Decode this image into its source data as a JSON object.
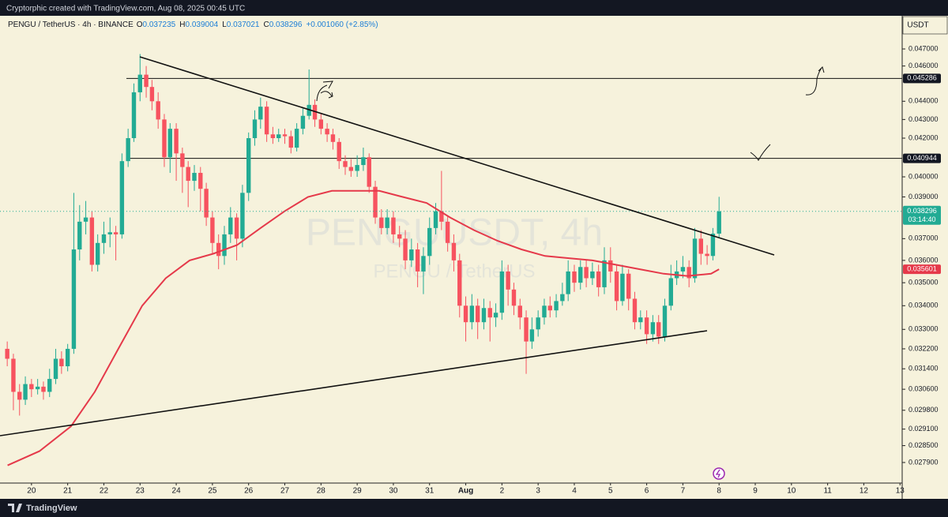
{
  "header": {
    "attribution": "Cryptorphic created with TradingView.com, Aug 08, 2025 00:45 UTC",
    "brand": "TradingView"
  },
  "chart_data": {
    "type": "candlestick",
    "legend": {
      "symbol": "PENGU / TetherUS · 4h · BINANCE",
      "o": "O",
      "h": "H",
      "l": "L",
      "c": "C",
      "change": "+0.001060 (+2.85%)"
    },
    "watermark": {
      "title": "PENGUUSDT, 4h",
      "subtitle": "PENGU / TetherUS"
    },
    "currency": "USDT",
    "up_color": "#22ab94",
    "down_color": "#f7525f",
    "x": [
      19.33,
      19.5,
      19.67,
      19.83,
      20,
      20.17,
      20.33,
      20.5,
      20.67,
      20.83,
      21,
      21.17,
      21.33,
      21.5,
      21.67,
      21.83,
      22,
      22.17,
      22.33,
      22.5,
      22.67,
      22.83,
      23,
      23.17,
      23.33,
      23.5,
      23.67,
      23.83,
      24,
      24.17,
      24.33,
      24.5,
      24.67,
      24.83,
      25,
      25.17,
      25.33,
      25.5,
      25.67,
      25.83,
      26,
      26.17,
      26.33,
      26.5,
      26.67,
      26.83,
      27,
      27.17,
      27.33,
      27.5,
      27.67,
      27.83,
      28,
      28.17,
      28.33,
      28.5,
      28.67,
      28.83,
      29,
      29.17,
      29.33,
      29.5,
      29.67,
      29.83,
      30,
      30.17,
      30.33,
      30.5,
      30.67,
      30.83,
      31,
      31.17,
      31.33,
      31.5,
      31.67,
      31.83,
      32,
      32.17,
      32.33,
      32.5,
      32.67,
      32.83,
      33,
      33.17,
      33.33,
      33.5,
      33.67,
      33.83,
      34,
      34.17,
      34.33,
      34.5,
      34.67,
      34.83,
      35,
      35.17,
      35.33,
      35.5,
      35.67,
      35.83,
      36,
      36.17,
      36.33,
      36.5,
      36.67,
      36.83,
      37,
      37.17,
      37.33,
      37.5,
      37.67,
      37.83,
      38,
      38.17,
      38.33,
      38.5,
      38.67,
      38.83,
      39
    ],
    "open": [
      0.0322,
      0.0318,
      0.0305,
      0.0302,
      0.0308,
      0.0306,
      0.0307,
      0.0305,
      0.031,
      0.0318,
      0.0315,
      0.0322,
      0.0365,
      0.0378,
      0.038,
      0.0358,
      0.0368,
      0.0372,
      0.0373,
      0.0372,
      0.0408,
      0.042,
      0.0445,
      0.0455,
      0.0448,
      0.044,
      0.043,
      0.041,
      0.0425,
      0.0412,
      0.0405,
      0.0398,
      0.0402,
      0.0394,
      0.038,
      0.0368,
      0.0362,
      0.0372,
      0.038,
      0.037,
      0.0392,
      0.042,
      0.043,
      0.0437,
      0.0422,
      0.042,
      0.0422,
      0.0421,
      0.0415,
      0.0425,
      0.0432,
      0.0438,
      0.043,
      0.0425,
      0.0422,
      0.0418,
      0.0408,
      0.0405,
      0.0403,
      0.0406,
      0.041,
      0.0395,
      0.038,
      0.0375,
      0.038,
      0.0372,
      0.037,
      0.036,
      0.0365,
      0.0355,
      0.0362,
      0.0375,
      0.0383,
      0.0378,
      0.0368,
      0.036,
      0.034,
      0.0333,
      0.034,
      0.0333,
      0.0339,
      0.0335,
      0.0337,
      0.0355,
      0.0347,
      0.034,
      0.0335,
      0.0325,
      0.033,
      0.0335,
      0.034,
      0.0338,
      0.0342,
      0.0345,
      0.0355,
      0.035,
      0.0357,
      0.0352,
      0.0355,
      0.0348,
      0.036,
      0.0355,
      0.0342,
      0.0354,
      0.0343,
      0.0333,
      0.0335,
      0.0328,
      0.0333,
      0.0327,
      0.034,
      0.0352,
      0.0355,
      0.0357,
      0.0352,
      0.037,
      0.0363,
      0.0362,
      0.037235
    ],
    "high": [
      0.0325,
      0.032,
      0.0308,
      0.0311,
      0.031,
      0.031,
      0.0309,
      0.0314,
      0.0322,
      0.0321,
      0.0324,
      0.0392,
      0.0386,
      0.0388,
      0.0383,
      0.0372,
      0.0378,
      0.038,
      0.0376,
      0.0412,
      0.0425,
      0.045,
      0.0467,
      0.046,
      0.0452,
      0.0445,
      0.0433,
      0.0428,
      0.0428,
      0.0415,
      0.0408,
      0.0406,
      0.0405,
      0.0397,
      0.0383,
      0.0372,
      0.0376,
      0.0385,
      0.0382,
      0.0396,
      0.0423,
      0.0435,
      0.0442,
      0.044,
      0.0426,
      0.0425,
      0.0425,
      0.0424,
      0.0428,
      0.0436,
      0.0458,
      0.0441,
      0.0433,
      0.0428,
      0.0425,
      0.042,
      0.0411,
      0.0409,
      0.0411,
      0.0415,
      0.0412,
      0.0398,
      0.0384,
      0.0384,
      0.0383,
      0.0376,
      0.0374,
      0.037,
      0.0368,
      0.0366,
      0.038,
      0.0387,
      0.0403,
      0.0381,
      0.0372,
      0.0363,
      0.0344,
      0.0345,
      0.0343,
      0.0343,
      0.0342,
      0.0341,
      0.036,
      0.0358,
      0.035,
      0.0343,
      0.0338,
      0.0335,
      0.0338,
      0.0343,
      0.0344,
      0.0345,
      0.035,
      0.036,
      0.0358,
      0.036,
      0.036,
      0.0359,
      0.0358,
      0.0366,
      0.0366,
      0.0358,
      0.0358,
      0.0356,
      0.0346,
      0.0338,
      0.0338,
      0.0336,
      0.0336,
      0.0343,
      0.0358,
      0.036,
      0.0362,
      0.036,
      0.0375,
      0.0374,
      0.0367,
      0.0375,
      0.039004
    ],
    "low": [
      0.0315,
      0.0298,
      0.0296,
      0.03,
      0.0303,
      0.0304,
      0.0302,
      0.0303,
      0.0308,
      0.0312,
      0.0313,
      0.032,
      0.036,
      0.0372,
      0.0355,
      0.0355,
      0.0363,
      0.0366,
      0.036,
      0.037,
      0.0405,
      0.0418,
      0.044,
      0.0442,
      0.0435,
      0.0425,
      0.0405,
      0.0402,
      0.0398,
      0.0392,
      0.0385,
      0.0393,
      0.0383,
      0.0376,
      0.0363,
      0.0356,
      0.0358,
      0.0368,
      0.036,
      0.0366,
      0.0388,
      0.0416,
      0.0425,
      0.0418,
      0.0417,
      0.0418,
      0.0417,
      0.0412,
      0.0413,
      0.0422,
      0.043,
      0.0426,
      0.0422,
      0.0418,
      0.0414,
      0.0404,
      0.0401,
      0.04,
      0.04,
      0.0403,
      0.0392,
      0.0377,
      0.0372,
      0.0372,
      0.0368,
      0.0366,
      0.0356,
      0.0357,
      0.0348,
      0.0345,
      0.0358,
      0.0372,
      0.0374,
      0.0364,
      0.0355,
      0.0335,
      0.0325,
      0.033,
      0.0326,
      0.033,
      0.0325,
      0.0331,
      0.0334,
      0.034,
      0.0336,
      0.033,
      0.0312,
      0.0322,
      0.0327,
      0.0332,
      0.0335,
      0.0335,
      0.034,
      0.0342,
      0.0346,
      0.0347,
      0.0348,
      0.0349,
      0.0344,
      0.0345,
      0.035,
      0.0338,
      0.034,
      0.0338,
      0.033,
      0.033,
      0.0324,
      0.0325,
      0.0324,
      0.0325,
      0.0338,
      0.0349,
      0.0352,
      0.0348,
      0.035,
      0.0358,
      0.0358,
      0.036,
      0.037021
    ],
    "close": [
      0.0318,
      0.0305,
      0.0302,
      0.0308,
      0.0306,
      0.0307,
      0.0305,
      0.031,
      0.0318,
      0.0315,
      0.0322,
      0.0365,
      0.0378,
      0.038,
      0.0358,
      0.0368,
      0.0372,
      0.0373,
      0.0372,
      0.0408,
      0.042,
      0.0445,
      0.0455,
      0.0448,
      0.044,
      0.043,
      0.041,
      0.0425,
      0.0412,
      0.0405,
      0.0398,
      0.0402,
      0.0394,
      0.038,
      0.0368,
      0.0362,
      0.0372,
      0.038,
      0.037,
      0.0392,
      0.042,
      0.043,
      0.0437,
      0.0422,
      0.042,
      0.0422,
      0.0421,
      0.0415,
      0.0425,
      0.0432,
      0.0438,
      0.043,
      0.0425,
      0.0422,
      0.0418,
      0.0408,
      0.0405,
      0.0403,
      0.0406,
      0.041,
      0.0395,
      0.038,
      0.0375,
      0.038,
      0.0372,
      0.037,
      0.036,
      0.0365,
      0.0355,
      0.0362,
      0.0375,
      0.0383,
      0.0378,
      0.0368,
      0.036,
      0.034,
      0.0333,
      0.034,
      0.0333,
      0.0339,
      0.0335,
      0.0337,
      0.0355,
      0.0347,
      0.034,
      0.0335,
      0.0325,
      0.033,
      0.0335,
      0.034,
      0.0338,
      0.0342,
      0.0345,
      0.0355,
      0.035,
      0.0357,
      0.0352,
      0.0355,
      0.0348,
      0.036,
      0.0355,
      0.0342,
      0.0354,
      0.0343,
      0.0333,
      0.0335,
      0.0328,
      0.0333,
      0.0327,
      0.034,
      0.0352,
      0.0355,
      0.0357,
      0.0352,
      0.037,
      0.0363,
      0.0362,
      0.037235,
      0.038296
    ],
    "ema": {
      "color": "#e5394a",
      "x": [
        19.34,
        20.22,
        21.09,
        21.75,
        22.4,
        23.06,
        23.71,
        24.37,
        25.02,
        25.68,
        26.33,
        26.99,
        27.64,
        28.3,
        28.95,
        29.61,
        30.26,
        30.92,
        31.57,
        32.23,
        32.88,
        33.54,
        34.19,
        34.85,
        35.5,
        36.16,
        36.81,
        37.47,
        38.12,
        38.78,
        39
      ],
      "values": [
        0.0278,
        0.0283,
        0.0292,
        0.0305,
        0.0322,
        0.034,
        0.0352,
        0.036,
        0.0363,
        0.0367,
        0.0375,
        0.0383,
        0.039,
        0.0393,
        0.0393,
        0.0393,
        0.039,
        0.0387,
        0.038,
        0.0374,
        0.0369,
        0.0365,
        0.0362,
        0.0361,
        0.036,
        0.0358,
        0.0356,
        0.0354,
        0.0353,
        0.0354,
        0.035601
      ]
    },
    "hlines": [
      0.045286,
      0.040944
    ],
    "countdown": "03:14:40",
    "log_y": true,
    "xlim": [
      19.13,
      44.06
    ],
    "xticks": [
      20,
      21,
      22,
      23,
      24,
      25,
      26,
      27,
      28,
      29,
      30,
      31,
      {
        "value": 32,
        "label": "Aug"
      },
      {
        "value": 33,
        "label": "2"
      },
      {
        "value": 34,
        "label": "3"
      },
      {
        "value": 35,
        "label": "4"
      },
      {
        "value": 36,
        "label": "5"
      },
      {
        "value": 37,
        "label": "6"
      },
      {
        "value": 38,
        "label": "7"
      },
      {
        "value": 39,
        "label": "8"
      },
      {
        "value": 40,
        "label": "9"
      },
      {
        "value": 41,
        "label": "10"
      },
      {
        "value": 42,
        "label": "11"
      },
      {
        "value": 43,
        "label": "12"
      },
      {
        "value": 44,
        "label": "13"
      }
    ],
    "ylim": [
      0.02724,
      0.04891
    ],
    "yticks": [
      {
        "value": 0.047,
        "label": "0.047000"
      },
      {
        "value": 0.046,
        "label": "0.046000"
      },
      {
        "value": 0.044,
        "label": "0.044000"
      },
      {
        "value": 0.043,
        "label": "0.043000"
      },
      {
        "value": 0.042,
        "label": "0.042000"
      },
      {
        "value": 0.04,
        "label": "0.040000"
      },
      {
        "value": 0.039,
        "label": "0.039000"
      },
      {
        "value": 0.037,
        "label": "0.037000"
      },
      {
        "value": 0.036,
        "label": "0.036000"
      },
      {
        "value": 0.035,
        "label": "0.035000"
      },
      {
        "value": 0.034,
        "label": "0.034000"
      },
      {
        "value": 0.033,
        "label": "0.033000"
      },
      {
        "value": 0.0322,
        "label": "0.032200"
      },
      {
        "value": 0.0314,
        "label": "0.031400"
      },
      {
        "value": 0.0306,
        "label": "0.030600"
      },
      {
        "value": 0.0298,
        "label": "0.029800"
      },
      {
        "value": 0.0291,
        "label": "0.029100"
      },
      {
        "value": 0.0285,
        "label": "0.028500"
      },
      {
        "value": 0.0279,
        "label": "0.027900"
      }
    ]
  }
}
